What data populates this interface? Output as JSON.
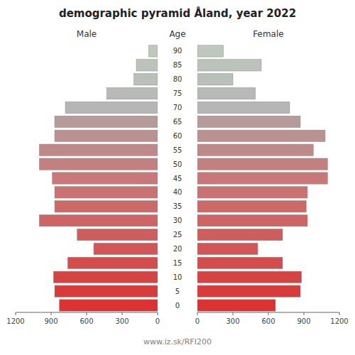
{
  "chart_data": {
    "type": "bar",
    "orientation": "horizontal",
    "title": "demographic pyramid Åland, year 2022",
    "ylabel": "Age",
    "categories": [
      "90",
      "85",
      "80",
      "75",
      "70",
      "65",
      "60",
      "55",
      "50",
      "45",
      "40",
      "35",
      "30",
      "25",
      "20",
      "15",
      "10",
      "5",
      "0"
    ],
    "colors": [
      "#bec8be",
      "#bbc3bb",
      "#b9bfb9",
      "#b7bab7",
      "#b5b6b5",
      "#b69b9b",
      "#ba9292",
      "#bf8989",
      "#c38080",
      "#c87878",
      "#ca7171",
      "#cc6a6a",
      "#ce6464",
      "#d05d5d",
      "#d35555",
      "#d54c4c",
      "#d74343",
      "#d93a3a",
      "#dc3232"
    ],
    "series": [
      {
        "name": "Male",
        "values": [
          75,
          180,
          200,
          430,
          780,
          870,
          870,
          1000,
          1000,
          890,
          870,
          870,
          1000,
          680,
          540,
          760,
          880,
          870,
          830
        ]
      },
      {
        "name": "Female",
        "values": [
          220,
          540,
          300,
          490,
          780,
          870,
          1080,
          980,
          1100,
          1100,
          930,
          920,
          930,
          720,
          510,
          720,
          880,
          870,
          660
        ]
      }
    ],
    "xlim": [
      0,
      1200
    ],
    "xticks": [
      0,
      300,
      600,
      900,
      1200
    ],
    "annotations": [
      {
        "text": "www.iz.sk/RFI200"
      }
    ]
  }
}
